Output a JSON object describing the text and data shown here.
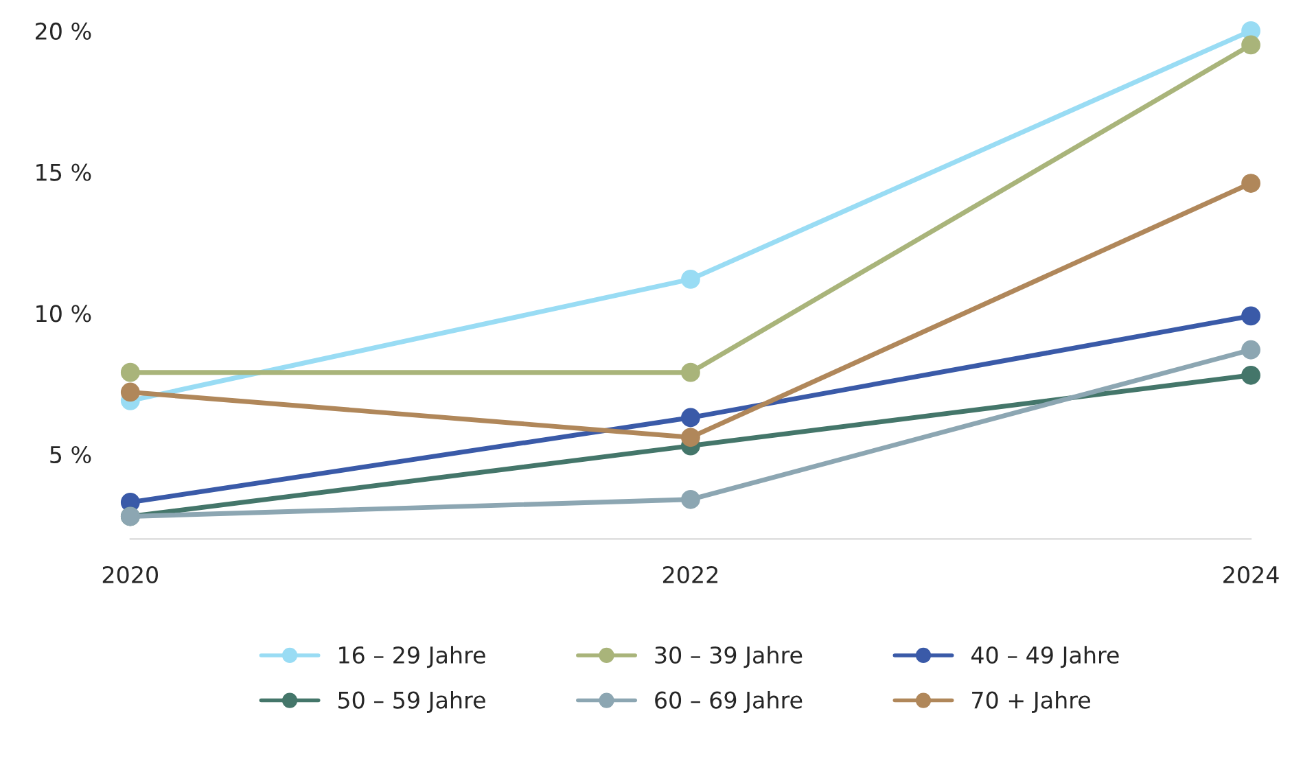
{
  "chart_data": {
    "type": "line",
    "x": [
      2020,
      2022,
      2024
    ],
    "xlim": [
      2020,
      2024
    ],
    "xticks": [
      2020,
      2022,
      2024
    ],
    "ylim": [
      2,
      20
    ],
    "yticks": [
      {
        "value": 5,
        "label": "5 %"
      },
      {
        "value": 10,
        "label": "10 %"
      },
      {
        "value": 15,
        "label": "15 %"
      },
      {
        "value": 20,
        "label": "20 %"
      }
    ],
    "grid": false,
    "legend": "bottom",
    "marker": "circle",
    "line_style": "solid",
    "series": [
      {
        "name": "16 – 29 Jahre",
        "color": "#99dcf4",
        "values": [
          6.9,
          11.2,
          20
        ]
      },
      {
        "name": "30 – 39 Jahre",
        "color": "#a9b47a",
        "values": [
          7.9,
          7.9,
          19.5
        ]
      },
      {
        "name": "40 – 49 Jahre",
        "color": "#3a5aa8",
        "values": [
          3.3,
          6.3,
          9.9
        ]
      },
      {
        "name": "50 – 59 Jahre",
        "color": "#44766a",
        "values": [
          2.8,
          5.3,
          7.8
        ]
      },
      {
        "name": "60 – 69 Jahre",
        "color": "#8ca6b2",
        "values": [
          2.8,
          3.4,
          8.7
        ]
      },
      {
        "name": "70 + Jahre",
        "color": "#b0875a",
        "values": [
          7.2,
          5.6,
          14.6
        ]
      }
    ]
  }
}
